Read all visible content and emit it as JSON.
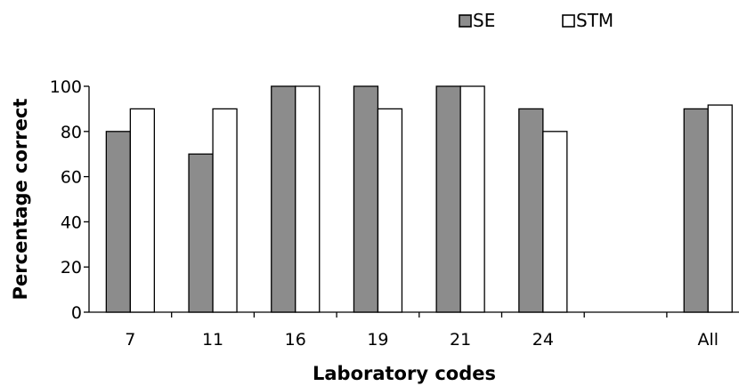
{
  "chart_data": {
    "type": "bar",
    "categories": [
      "7",
      "11",
      "16",
      "19",
      "21",
      "24",
      "",
      "All"
    ],
    "series": [
      {
        "name": "SE",
        "values": [
          80,
          70,
          100,
          100,
          100,
          90,
          null,
          90
        ],
        "color": "#8c8c8c"
      },
      {
        "name": "STM",
        "values": [
          90,
          90,
          100,
          90,
          100,
          80,
          null,
          91.7
        ],
        "color": "#ffffff"
      }
    ],
    "xlabel": "Laboratory codes",
    "ylabel": "Percentage correct",
    "ylim": [
      0,
      100
    ],
    "yticks": [
      0,
      20,
      40,
      60,
      80,
      100
    ],
    "grid": false,
    "legend_position": "top-right"
  }
}
